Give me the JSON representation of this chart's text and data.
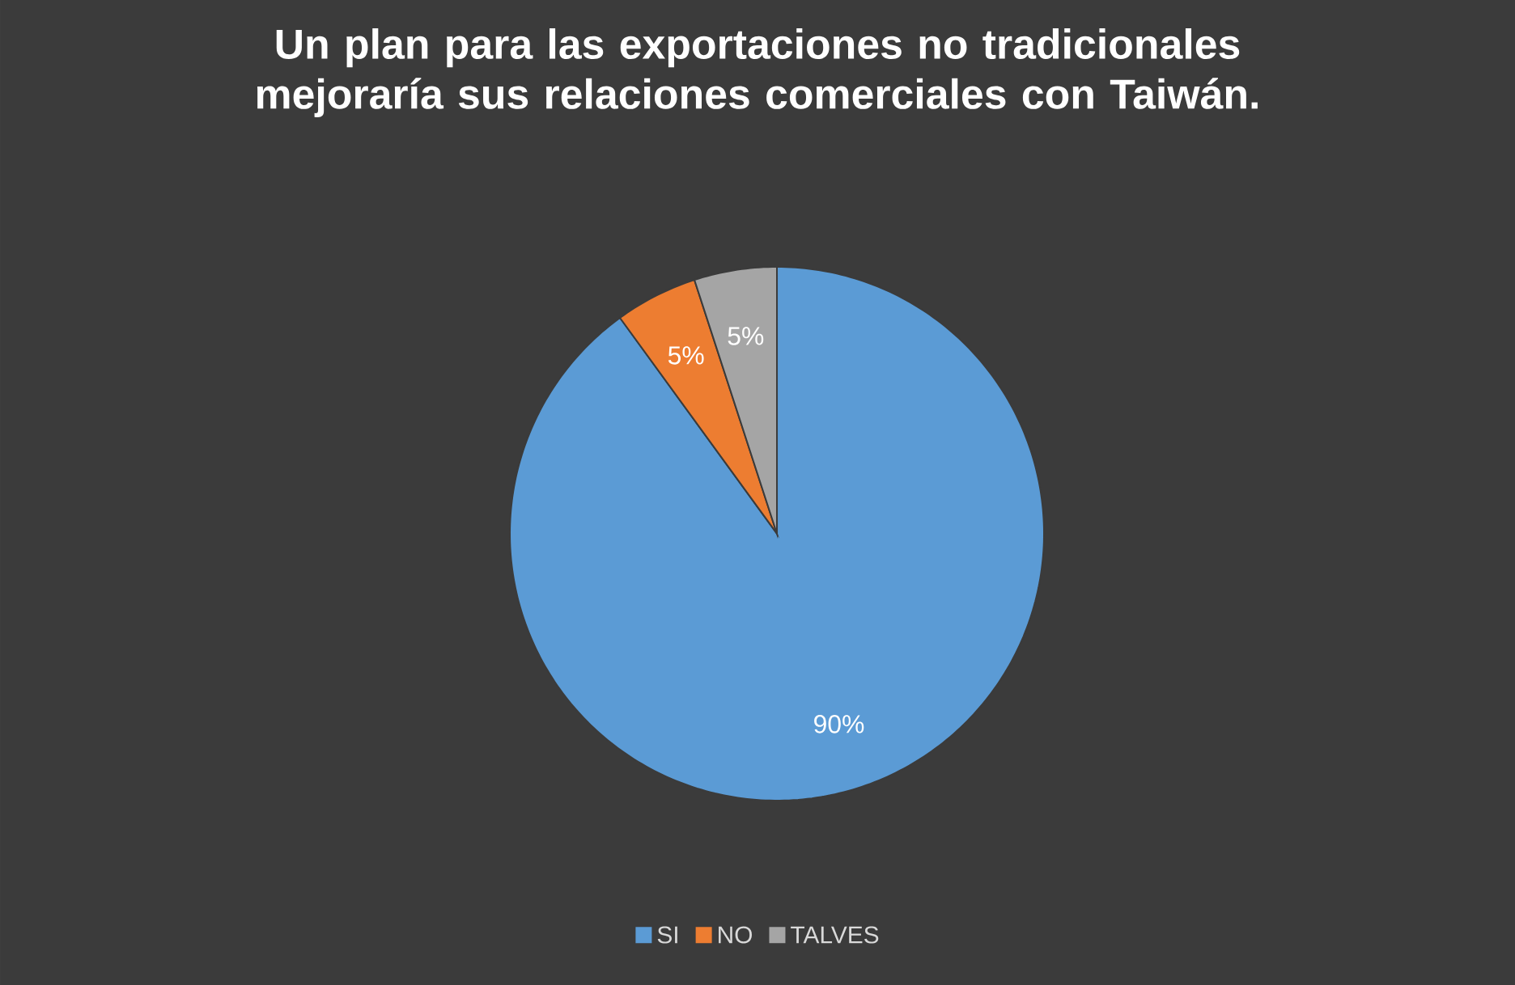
{
  "chart_data": {
    "type": "pie",
    "title": "Un plan  para las exportaciones no tradicionales mejoraría sus relaciones comerciales con Taiwán.",
    "categories": [
      "SI",
      "NO",
      "TALVES"
    ],
    "values": [
      90,
      5,
      5
    ],
    "value_labels": [
      "90%",
      "5%",
      "5%"
    ],
    "colors": [
      "#5b9bd5",
      "#ed7d31",
      "#a5a5a5"
    ],
    "legend": "bottom"
  }
}
